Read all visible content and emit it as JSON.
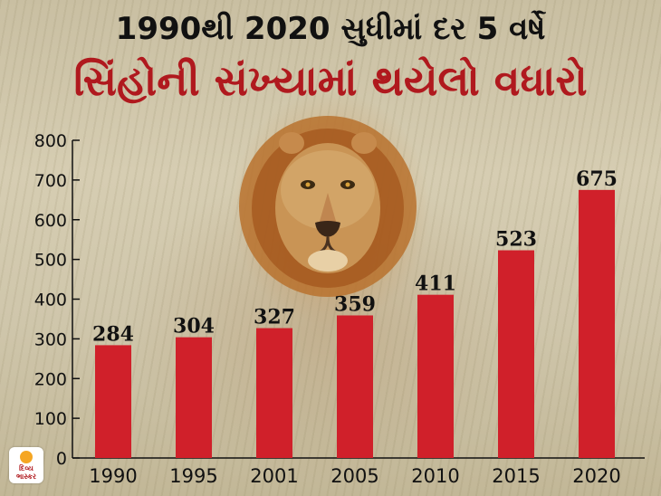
{
  "header": {
    "line1": "1990થી 2020 સુધીમાં દર 5 વર્ષે",
    "line2": "સિંહોની સંખ્યામાં થયેલો વધારો"
  },
  "logo": {
    "text": "દિવ્ય ભાસ્કર"
  },
  "colors": {
    "bar": "#d0202a",
    "title_accent": "#b0191e",
    "text": "#111111"
  },
  "chart_data": {
    "type": "bar",
    "title": "સિંહોની સંખ્યામાં થયેલો વધારો",
    "subtitle": "1990થી 2020 સુધીમાં દર 5 વર્ષે",
    "xlabel": "",
    "ylabel": "",
    "categories": [
      "1990",
      "1995",
      "2001",
      "2005",
      "2010",
      "2015",
      "2020"
    ],
    "values": [
      284,
      304,
      327,
      359,
      411,
      523,
      675
    ],
    "ylim": [
      0,
      800
    ],
    "yticks": [
      0,
      100,
      200,
      300,
      400,
      500,
      600,
      700,
      800
    ],
    "grid": false,
    "data_labels": true
  }
}
